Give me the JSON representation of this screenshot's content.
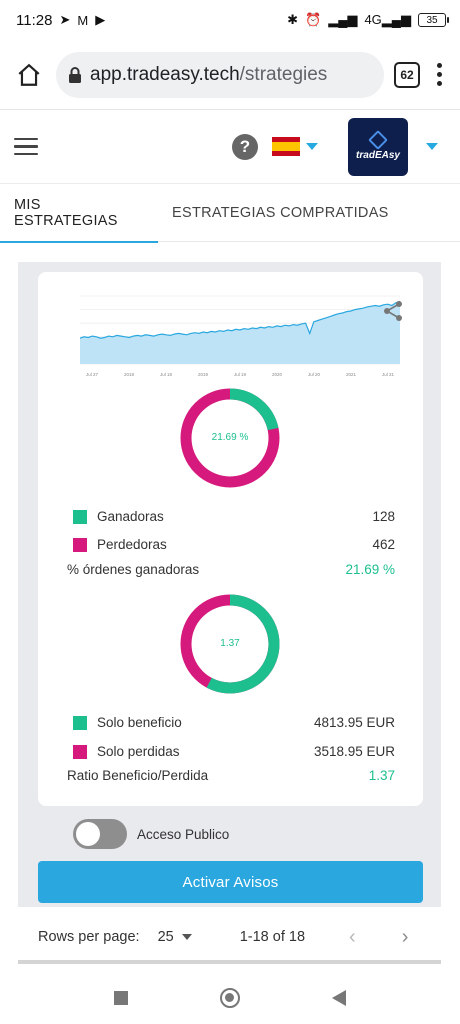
{
  "status_bar": {
    "time": "11:28",
    "icons_left": [
      "telegram-icon",
      "gmail-icon",
      "play-icon"
    ],
    "icons_right": [
      "bluetooth-icon",
      "alarm-icon",
      "signal-icon",
      "4g-signal-icon",
      "battery-icon"
    ],
    "network": "4G",
    "battery": "35"
  },
  "browser": {
    "url_host": "app.tradeasy.tech",
    "url_path": "/strategies",
    "tab_count": "62"
  },
  "header": {
    "language": "Spain flag",
    "logo_text": "tradEAsy"
  },
  "tabs": [
    {
      "label": "MIS ESTRATEGIAS",
      "active": true
    },
    {
      "label": "ESTRATEGIAS COMPRATIDAS",
      "active": false
    }
  ],
  "card": {
    "orders_donut": {
      "label": "21.69 %",
      "win_fraction": 0.2169
    },
    "orders_legend": [
      {
        "label": "Ganadoras",
        "value": "128",
        "color": "#1dbf8f"
      },
      {
        "label": "Perdedoras",
        "value": "462",
        "color": "#d6197c"
      }
    ],
    "orders_ratio": {
      "label": "% órdenes ganadoras",
      "value": "21.69 %"
    },
    "profit_donut": {
      "label": "1.37",
      "profit_fraction": 0.5777
    },
    "profit_legend": [
      {
        "label": "Solo beneficio",
        "value": "4813.95 EUR",
        "color": "#1dbf8f"
      },
      {
        "label": "Solo perdidas",
        "value": "3518.95 EUR",
        "color": "#d6197c"
      }
    ],
    "profit_ratio": {
      "label": "Ratio Beneficio/Perdida",
      "value": "1.37"
    }
  },
  "access": {
    "label": "Acceso Publico",
    "enabled": false
  },
  "activar_button": "Activar Avisos",
  "pagination": {
    "rows_label": "Rows per page:",
    "rows_value": "25",
    "range": "1-18 of 18",
    "prev": "‹",
    "next": "›"
  },
  "colors": {
    "accent": "#2aa7df",
    "green": "#1dbf8f",
    "magenta": "#d6197c"
  },
  "chart_data": {
    "type": "area",
    "title": "",
    "xlabel": "",
    "ylabel": "",
    "x_tick_labels": [
      "Jul 27",
      "2018",
      "Jul 18",
      "2019",
      "Jul 19",
      "2020",
      "Jul 20",
      "2021",
      "Jul 21"
    ],
    "series": [
      {
        "values": [
          38,
          40,
          39,
          41,
          40,
          38,
          39,
          41,
          40,
          42,
          41,
          40,
          39,
          41,
          42,
          41,
          43,
          42,
          41,
          43,
          44,
          43,
          42,
          44,
          45,
          44,
          43,
          45,
          46,
          45,
          47,
          46,
          48,
          47,
          49,
          48,
          50,
          49,
          51,
          50,
          52,
          51,
          53,
          52,
          54,
          53,
          55,
          54,
          56,
          55,
          57,
          56,
          58,
          57,
          59,
          60,
          45,
          62,
          64,
          66,
          68,
          70,
          72,
          74,
          75,
          77,
          78,
          80,
          81,
          82,
          84,
          85,
          86,
          85,
          87,
          88,
          86,
          90,
          92
        ]
      }
    ],
    "grid": true,
    "legend": "none"
  }
}
